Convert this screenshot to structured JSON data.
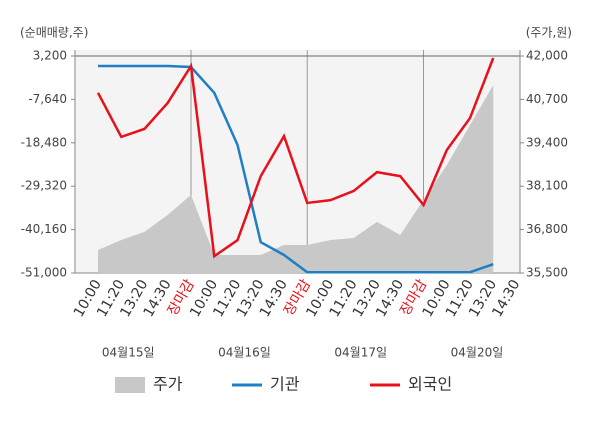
{
  "chart_data": {
    "type": "line",
    "y_axis_label": "(순매매량,주)",
    "y2_axis_label": "(주가,원)",
    "categories": [
      "10:00",
      "11:20",
      "13:20",
      "14:30",
      "장마감",
      "10:00",
      "11:20",
      "13:20",
      "14:30",
      "장마감",
      "10:00",
      "11:20",
      "13:20",
      "14:30",
      "장마감",
      "10:00",
      "11:20",
      "13:20",
      "14:30"
    ],
    "session_breaks": [
      4,
      9,
      14
    ],
    "date_labels": [
      "04월15일",
      "04월16일",
      "04월17일",
      "04월20일"
    ],
    "ylim": [
      -51000,
      3200
    ],
    "yticks": [
      {
        "value": -51000,
        "label": "-51,000"
      },
      {
        "value": -40160,
        "label": "-40,160"
      },
      {
        "value": -29320,
        "label": "-29,320"
      },
      {
        "value": -18480,
        "label": "-18,480"
      },
      {
        "value": -7640,
        "label": "-7,640"
      },
      {
        "value": 3200,
        "label": "3,200"
      }
    ],
    "y2lim": [
      35500,
      42000
    ],
    "y2ticks": [
      {
        "value": 35500,
        "label": "35,500"
      },
      {
        "value": 36800,
        "label": "36,800"
      },
      {
        "value": 38100,
        "label": "38,100"
      },
      {
        "value": 39400,
        "label": "39,400"
      },
      {
        "value": 40700,
        "label": "40,700"
      },
      {
        "value": 42000,
        "label": "42,000"
      }
    ],
    "series": [
      {
        "name": "주가",
        "type": "area",
        "axis": "y2",
        "color": "#c8c8c8",
        "values": [
          36190,
          36490,
          36730,
          37240,
          37840,
          36040,
          36040,
          36040,
          36340,
          36340,
          36490,
          36550,
          37030,
          36640,
          37690,
          38730,
          39930,
          41130,
          null
        ]
      },
      {
        "name": "기관",
        "color": "#1f7fc4",
        "values": [
          700,
          700,
          700,
          700,
          450,
          -6000,
          -19000,
          -43300,
          -46500,
          -50800,
          -50800,
          -50800,
          -50800,
          -50800,
          -50800,
          -50800,
          -50800,
          -48800,
          null
        ]
      },
      {
        "name": "외국인",
        "color": "#e8101a",
        "values": [
          -6000,
          -17000,
          -15000,
          -8500,
          700,
          -46800,
          -42800,
          -26800,
          -16800,
          -33500,
          -32800,
          -30500,
          -25800,
          -26800,
          -34000,
          -20300,
          -12300,
          2700,
          null
        ]
      }
    ]
  }
}
